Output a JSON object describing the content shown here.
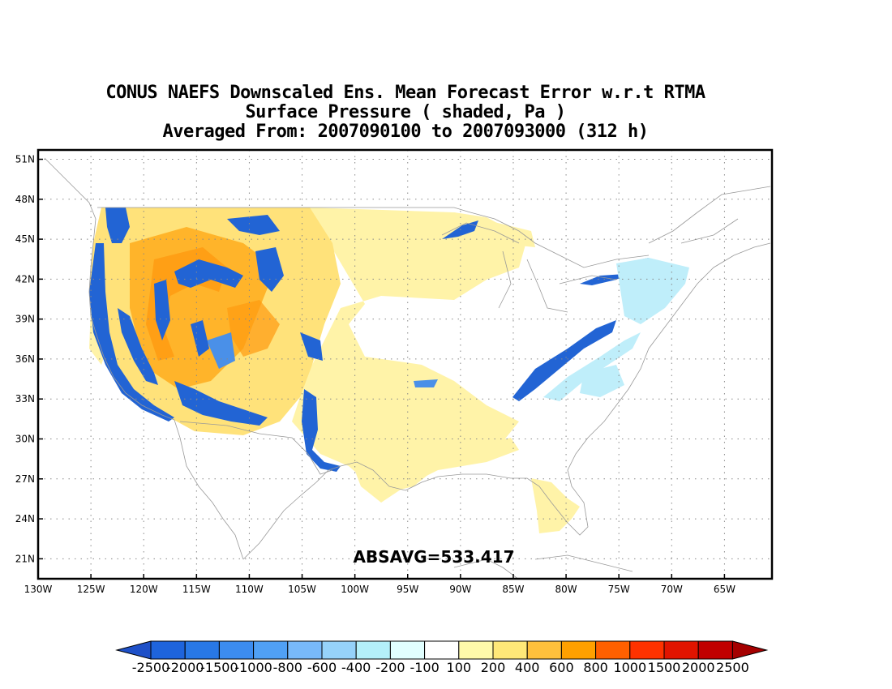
{
  "title": {
    "line1": "CONUS NAEFS Downscaled Ens. Mean Forecast Error w.r.t RTMA",
    "line2": "Surface Pressure ( shaded, Pa )",
    "line3": "Averaged From: 2007090100 to 2007093000 (312 h)"
  },
  "stat_label": "ABSAVG=533.417",
  "map_extent": {
    "lon": [
      -130,
      -60.5
    ],
    "lat": [
      19.5,
      51.7
    ]
  },
  "lat_ticks": [
    {
      "value": 51,
      "label": "51N"
    },
    {
      "value": 48,
      "label": "48N"
    },
    {
      "value": 45,
      "label": "45N"
    },
    {
      "value": 42,
      "label": "42N"
    },
    {
      "value": 39,
      "label": "39N"
    },
    {
      "value": 36,
      "label": "36N"
    },
    {
      "value": 33,
      "label": "33N"
    },
    {
      "value": 30,
      "label": "30N"
    },
    {
      "value": 27,
      "label": "27N"
    },
    {
      "value": 24,
      "label": "24N"
    },
    {
      "value": 21,
      "label": "21N"
    }
  ],
  "lon_ticks": [
    {
      "value": -130,
      "label": "130W"
    },
    {
      "value": -125,
      "label": "125W"
    },
    {
      "value": -120,
      "label": "120W"
    },
    {
      "value": -115,
      "label": "115W"
    },
    {
      "value": -110,
      "label": "110W"
    },
    {
      "value": -105,
      "label": "105W"
    },
    {
      "value": -100,
      "label": "100W"
    },
    {
      "value": -95,
      "label": "95W"
    },
    {
      "value": -90,
      "label": "90W"
    },
    {
      "value": -85,
      "label": "85W"
    },
    {
      "value": -80,
      "label": "80W"
    },
    {
      "value": -75,
      "label": "75W"
    },
    {
      "value": -70,
      "label": "70W"
    },
    {
      "value": -65,
      "label": "65W"
    }
  ],
  "colorbar": {
    "boxes": [
      "#1e64dc",
      "#2878e6",
      "#3c8cf0",
      "#50a0f5",
      "#78b9fa",
      "#96d2fa",
      "#b4f0fa",
      "#e1ffff",
      "#ffffff",
      "#fffaaa",
      "#ffe878",
      "#ffc03c",
      "#ffa000",
      "#ff6000",
      "#ff3200",
      "#e11400",
      "#c00000"
    ],
    "under_color": "#1e50c8",
    "over_color": "#a50000",
    "labels": [
      "-2500",
      "-2000",
      "-1500",
      "-1000",
      "-800",
      "-600",
      "-400",
      "-200",
      "-100",
      "100",
      "200",
      "400",
      "600",
      "800",
      "1000",
      "1500",
      "2000",
      "2500"
    ]
  },
  "colors": {
    "strong_blue": "#2264d4",
    "mid_blue": "#4a90e8",
    "light_blue": "#bfeefa",
    "pale_yellow": "#fff3a8",
    "yellow": "#ffe27a",
    "orange": "#ffb42a",
    "dark_orange": "#ff9a10",
    "map_line": "#999999",
    "grid": "#888888"
  }
}
